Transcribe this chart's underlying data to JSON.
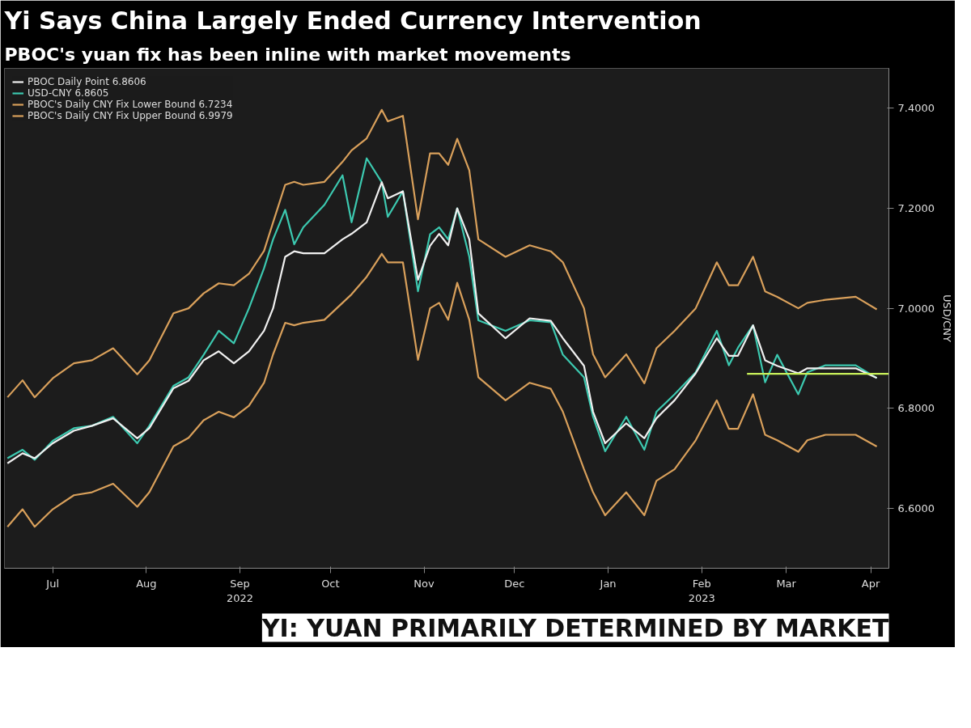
{
  "chart_data": {
    "type": "line",
    "title": "Yi Says China Largely Ended Currency Intervention",
    "subtitle": "PBOC's yuan fix has been inline with market movements",
    "ylabel": "USD/CNY",
    "annotations": [
      "YI: YUAN PRIMARILY DETERMINED BY MARKET"
    ],
    "x": [
      "2022-06-30",
      "2022-07-05",
      "2022-07-09",
      "2022-07-15",
      "2022-07-22",
      "2022-07-28",
      "2022-08-04",
      "2022-08-12",
      "2022-08-16",
      "2022-08-24",
      "2022-08-29",
      "2022-09-03",
      "2022-09-08",
      "2022-09-13",
      "2022-09-18",
      "2022-09-23",
      "2022-09-26",
      "2022-09-30",
      "2022-10-03",
      "2022-10-06",
      "2022-10-13",
      "2022-10-19",
      "2022-10-22",
      "2022-10-27",
      "2022-11-01",
      "2022-11-03",
      "2022-11-08",
      "2022-11-13",
      "2022-11-17",
      "2022-11-20",
      "2022-11-23",
      "2022-11-26",
      "2022-11-30",
      "2022-12-03",
      "2022-12-12",
      "2022-12-20",
      "2022-12-27",
      "2022-12-31",
      "2023-01-07",
      "2023-01-10",
      "2023-01-14",
      "2023-01-21",
      "2023-01-27",
      "2023-01-31",
      "2023-02-06",
      "2023-02-13",
      "2023-02-20",
      "2023-02-24",
      "2023-02-27",
      "2023-03-04",
      "2023-03-08",
      "2023-03-12",
      "2023-03-19",
      "2023-03-22",
      "2023-03-28",
      "2023-04-07",
      "2023-04-14"
    ],
    "series": [
      {
        "name": "PBOC's Daily CNY Fix Upper Bound 6.9979",
        "color": "#d9a05b",
        "values": [
          6.822,
          6.856,
          6.822,
          6.86,
          6.89,
          6.896,
          6.92,
          6.868,
          6.896,
          6.99,
          7.0,
          7.03,
          7.05,
          7.046,
          7.069,
          7.115,
          7.172,
          7.247,
          7.253,
          7.247,
          7.253,
          7.293,
          7.316,
          7.34,
          7.397,
          7.374,
          7.385,
          7.178,
          7.31,
          7.31,
          7.287,
          7.339,
          7.276,
          7.138,
          7.103,
          7.126,
          7.114,
          7.092,
          7.0,
          6.908,
          6.862,
          6.908,
          6.85,
          6.92,
          6.955,
          7.0,
          7.092,
          7.046,
          7.046,
          7.103,
          7.034,
          7.023,
          7.0,
          7.011,
          7.017,
          7.023,
          6.9979
        ]
      },
      {
        "name": "PBOC's Daily CNY Fix Lower Bound 6.7234",
        "color": "#d9a05b",
        "values": [
          6.563,
          6.598,
          6.563,
          6.598,
          6.626,
          6.632,
          6.649,
          6.603,
          6.632,
          6.724,
          6.741,
          6.776,
          6.793,
          6.782,
          6.805,
          6.851,
          6.908,
          6.971,
          6.966,
          6.971,
          6.977,
          7.011,
          7.028,
          7.063,
          7.109,
          7.092,
          7.092,
          6.897,
          7.0,
          7.011,
          6.977,
          7.051,
          6.977,
          6.862,
          6.816,
          6.851,
          6.839,
          6.793,
          6.678,
          6.632,
          6.586,
          6.632,
          6.586,
          6.655,
          6.678,
          6.736,
          6.816,
          6.759,
          6.759,
          6.828,
          6.747,
          6.736,
          6.713,
          6.736,
          6.747,
          6.747,
          6.7234
        ]
      },
      {
        "name": "USD-CNY 6.8605",
        "color": "#3cc9b0",
        "values": [
          6.7,
          6.717,
          6.697,
          6.735,
          6.76,
          6.765,
          6.783,
          6.73,
          6.765,
          6.845,
          6.862,
          6.907,
          6.955,
          6.93,
          7.0,
          7.08,
          7.138,
          7.197,
          7.128,
          7.162,
          7.207,
          7.266,
          7.172,
          7.3,
          7.252,
          7.183,
          7.234,
          7.034,
          7.148,
          7.162,
          7.138,
          7.2,
          7.103,
          6.976,
          6.955,
          6.976,
          6.972,
          6.907,
          6.862,
          6.783,
          6.714,
          6.783,
          6.717,
          6.793,
          6.828,
          6.872,
          6.955,
          6.886,
          6.921,
          6.966,
          6.852,
          6.907,
          6.828,
          6.872,
          6.886,
          6.886,
          6.8605
        ]
      },
      {
        "name": "PBOC Daily Point 6.8606",
        "color": "#f0f0f0",
        "values": [
          6.69,
          6.71,
          6.7,
          6.73,
          6.755,
          6.765,
          6.78,
          6.74,
          6.76,
          6.84,
          6.855,
          6.896,
          6.914,
          6.89,
          6.914,
          6.955,
          7.0,
          7.103,
          7.114,
          7.11,
          7.11,
          7.138,
          7.149,
          7.172,
          7.252,
          7.22,
          7.234,
          7.057,
          7.125,
          7.149,
          7.126,
          7.2,
          7.138,
          6.99,
          6.94,
          6.98,
          6.975,
          6.94,
          6.885,
          6.793,
          6.73,
          6.77,
          6.74,
          6.78,
          6.816,
          6.87,
          6.94,
          6.905,
          6.905,
          6.966,
          6.896,
          6.885,
          6.87,
          6.88,
          6.88,
          6.88,
          6.8606
        ]
      },
      {
        "color": "#c8f05a",
        "x": [
          "2023-03-02",
          "2023-04-18"
        ],
        "values": [
          6.869,
          6.869
        ]
      }
    ],
    "xlim": [
      "2022-06-29",
      "2023-04-18"
    ],
    "xticks": [
      {
        "value": "2022-07-15",
        "label": "Jul"
      },
      {
        "value": "2022-08-15",
        "label": "Aug"
      },
      {
        "value": "2022-09-15",
        "label": "Sep\n2022"
      },
      {
        "value": "2022-10-15",
        "label": "Oct"
      },
      {
        "value": "2022-11-15",
        "label": "Nov"
      },
      {
        "value": "2022-12-15",
        "label": "Dec"
      },
      {
        "value": "2023-01-15",
        "label": "Jan"
      },
      {
        "value": "2023-02-15",
        "label": "Feb\n2023"
      },
      {
        "value": "2023-03-15",
        "label": "Mar"
      },
      {
        "value": "2023-04-12",
        "label": "Apr"
      }
    ],
    "ylim": [
      6.48,
      7.48
    ],
    "yticks": [
      {
        "value": 6.6,
        "label": "6.6000"
      },
      {
        "value": 6.8,
        "label": "6.8000"
      },
      {
        "value": 7.0,
        "label": "7.0000"
      },
      {
        "value": 7.2,
        "label": "7.2000"
      },
      {
        "value": 7.4,
        "label": "7.4000"
      }
    ],
    "legend": "top left",
    "line_style": "solid"
  }
}
